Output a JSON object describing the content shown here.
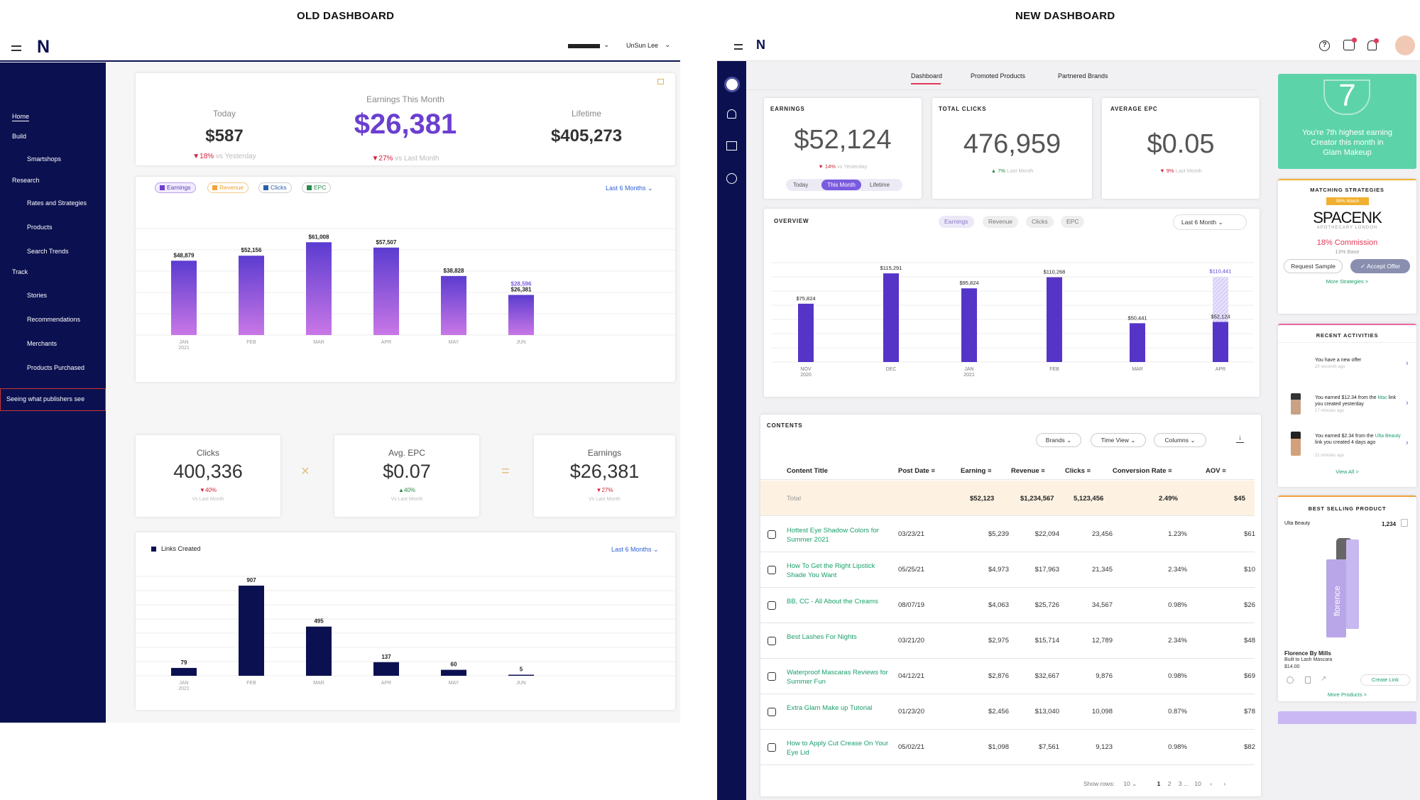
{
  "captions": {
    "old": "OLD DASHBOARD",
    "new": "NEW DASHBOARD"
  },
  "old": {
    "logo": "N",
    "account_masked": "████████",
    "user": "UnSun Lee",
    "nav": [
      "Home",
      "Build",
      "Smartshops",
      "Research",
      "Rates and Strategies",
      "Products",
      "Search Trends",
      "Track",
      "Stories",
      "Recommendations",
      "Merchants",
      "Products Purchased",
      "Seeing what publishers see"
    ],
    "earnings": {
      "today_label": "Today",
      "today_value": "$587",
      "today_change": "▼18%",
      "today_note": "vs Yesterday",
      "month_label": "Earnings This Month",
      "month_value": "$26,381",
      "month_change": "▼27%",
      "month_note": "vs Last Month",
      "life_label": "Lifetime",
      "life_value": "$405,273"
    },
    "chart_tabs": [
      "Earnings",
      "Revenue",
      "Clicks",
      "EPC"
    ],
    "range": "Last 6 Months",
    "chart_data": [
      {
        "type": "bar",
        "categories": [
          "JAN 2021",
          "FEB",
          "MAR",
          "APR",
          "MAY",
          "JUN"
        ],
        "values": [
          48879,
          52156,
          61008,
          57507,
          38828,
          26381
        ],
        "labels": [
          "$48,879",
          "$52,156",
          "$61,008",
          "$57,507",
          "$38,828",
          "$26,381"
        ],
        "projected_label": "$28,596",
        "projected_value": 28596
      },
      {
        "type": "bar",
        "legend": "Links Created",
        "categories": [
          "JAN 2021",
          "FEB",
          "MAR",
          "APR",
          "MAY",
          "JUN"
        ],
        "values": [
          79,
          907,
          495,
          137,
          60,
          5
        ]
      }
    ],
    "kpis": [
      {
        "label": "Clicks",
        "value": "400,336",
        "change": "▼40%",
        "note": "Vs Last Month"
      },
      {
        "label": "Avg. EPC",
        "value": "$0.07",
        "change": "▲40%",
        "note": "Vs Last Month"
      },
      {
        "label": "Earnings",
        "value": "$26,381",
        "change": "▼27%",
        "note": "Vs Last Month"
      }
    ],
    "ops": [
      "×",
      "="
    ],
    "links_legend": "Links Created"
  },
  "new": {
    "logo": "N",
    "tabs": [
      "Dashboard",
      "Promoted Products",
      "Partnered Brands"
    ],
    "earnings": {
      "label": "EARNINGS",
      "value": "$52,124",
      "change": "▼ 14%",
      "note": "vs Yesterday",
      "seg": [
        "Today",
        "This Month",
        "Lifetime"
      ]
    },
    "clicks": {
      "label": "TOTAL CLICKS",
      "value": "476,959",
      "change": "▲ 7%",
      "note": "Last Month"
    },
    "epc": {
      "label": "AVERAGE EPC",
      "value": "$0.05",
      "change": "▼ 9%",
      "note": "Last Month"
    },
    "overview": {
      "label": "OVERVIEW",
      "chips": [
        "Earnings",
        "Revenue",
        "Clicks",
        "EPC"
      ],
      "range": "Last 6 Month"
    },
    "chart_data": {
      "type": "bar",
      "categories": [
        "NOV 2020",
        "DEC",
        "JAN 2021",
        "FEB",
        "MAR",
        "APR"
      ],
      "values": [
        75824,
        115291,
        95824,
        110268,
        50441,
        52124
      ],
      "labels": [
        "$75,824",
        "$115,291",
        "$95,824",
        "$110,268",
        "$50,441",
        "$52,124"
      ],
      "projected_label": "$110,441",
      "projected_value": 110441
    },
    "contents": {
      "label": "CONTENTS",
      "filters": [
        "Brands",
        "Time View",
        "Columns"
      ],
      "headers": [
        "Content Title",
        "Post Date",
        "Earning",
        "Revenue",
        "Clicks",
        "Conversion Rate",
        "AOV"
      ],
      "total": [
        "Total",
        "",
        "$52,123",
        "$1,234,567",
        "5,123,456",
        "2.49%",
        "$45"
      ],
      "rows": [
        [
          "Hottest Eye Shadow Colors for Summer 2021",
          "03/23/21",
          "$5,239",
          "$22,094",
          "23,456",
          "1.23%",
          "$61"
        ],
        [
          "How To Get the Right Lipstick Shade You Want",
          "05/25/21",
          "$4,973",
          "$17,963",
          "21,345",
          "2.34%",
          "$10"
        ],
        [
          "BB, CC - All About the Creams",
          "08/07/19",
          "$4,063",
          "$25,726",
          "34,567",
          "0.98%",
          "$26"
        ],
        [
          "Best Lashes For Nights",
          "03/21/20",
          "$2,975",
          "$15,714",
          "12,789",
          "2.34%",
          "$48"
        ],
        [
          "Waterproof Mascaras Reviews for Summer Fun",
          "04/12/21",
          "$2,876",
          "$32,667",
          "9,876",
          "0.98%",
          "$69"
        ],
        [
          "Extra Glam Make up Tutorial",
          "01/23/20",
          "$2,456",
          "$13,040",
          "10,098",
          "0.87%",
          "$78"
        ],
        [
          "How to Apply Cut Crease On Your Eye Lid",
          "05/02/21",
          "$1,098",
          "$7,561",
          "9,123",
          "0.98%",
          "$82"
        ]
      ],
      "pagination": {
        "rows_label": "Show rows:",
        "rows": "10",
        "pages": [
          "1",
          "2",
          "3 ...",
          "10"
        ]
      }
    },
    "rank": {
      "number": "7",
      "text": "You're 7th highest earning Creator this month in",
      "category": "Glam Makeup"
    },
    "strategies": {
      "label": "MATCHING STRATEGIES",
      "match": "98% Match",
      "brand": "SPACENK",
      "brand_sub": "APOTHECARY LONDON",
      "commission": "18% Commission",
      "base": "13% Base",
      "request": "Request Sample",
      "accept": "Accept Offer",
      "more": "More Strategies >"
    },
    "activities": {
      "label": "RECENT ACTIVITIES",
      "items": [
        {
          "text": "You have a new offer",
          "time": "20 seconds ago"
        },
        {
          "pre": "You earned $12.34 from the",
          "brand": "Mac",
          "post": "link you created yesterday",
          "time": "17 minutes ago"
        },
        {
          "pre": "You earned $2.34 from the",
          "brand": "Ulta Beauty",
          "post": "link you created 4 days ago",
          "time": "21 minutes ago"
        }
      ],
      "view_all": "View All >"
    },
    "best": {
      "label": "BEST SELLING PRODUCT",
      "retailer": "Ulta Beauty",
      "count": "1,234",
      "product": "Florence By Mills",
      "desc": "Built to Lash Mascara",
      "price": "$14.00",
      "tube_text": "florence",
      "cta": "Create Link",
      "more": "More Products >"
    }
  }
}
